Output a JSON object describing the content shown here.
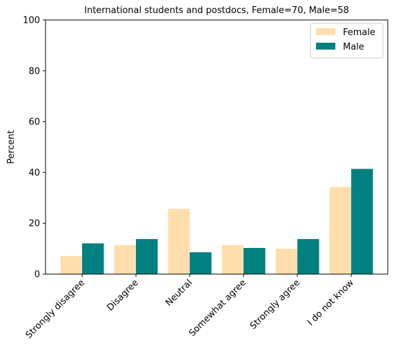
{
  "chart_data": {
    "type": "bar",
    "title": "International students and postdocs, Female=70, Male=58",
    "xlabel": "",
    "ylabel": "Percent",
    "ylim": [
      0,
      100
    ],
    "yticks": [
      0,
      20,
      40,
      60,
      80,
      100
    ],
    "grid": false,
    "legend_position": "top-right",
    "categories": [
      "Strongly disagree",
      "Disagree",
      "Neutral",
      "Somewhat agree",
      "Strongly agree",
      "I do not know"
    ],
    "series": [
      {
        "name": "Female",
        "color": "#FFDEAD",
        "values": [
          7.1,
          11.4,
          25.7,
          11.4,
          10.0,
          34.3
        ]
      },
      {
        "name": "Male",
        "color": "#008080",
        "values": [
          12.1,
          13.8,
          8.6,
          10.3,
          13.8,
          41.4
        ]
      }
    ]
  }
}
